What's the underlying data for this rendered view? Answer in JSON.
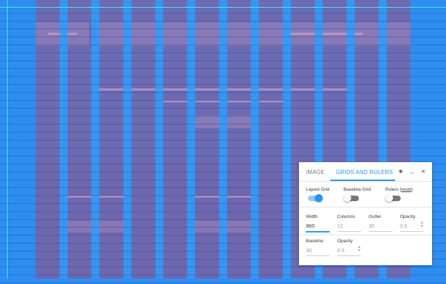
{
  "panel": {
    "tabs": [
      {
        "label": "IMAGE",
        "active": false
      },
      {
        "label": "GRIDS AND RULERS",
        "active": true
      }
    ],
    "icons": [
      "eye-off-icon",
      "minimize-icon",
      "close-icon"
    ],
    "minimize_glyph": "_",
    "close_glyph": "✕",
    "eye_glyph": "◉",
    "toggles": {
      "layout_grid": {
        "label": "Layout Grid",
        "on": true
      },
      "baseline_grid": {
        "label": "Baseline Grid",
        "on": false
      },
      "rulers": {
        "label": "Rulers",
        "reset": "reset",
        "on": false
      }
    },
    "layout": {
      "width": {
        "label": "Width",
        "value": "960"
      },
      "columns": {
        "label": "Columns",
        "value": "12"
      },
      "gutter": {
        "label": "Gutter",
        "value": "30"
      },
      "opacity": {
        "label": "Opacity",
        "value": "0.5"
      }
    },
    "baseline": {
      "baseline": {
        "label": "Baseline",
        "value": "30"
      },
      "opacity": {
        "label": "Opacity",
        "value": "0.5"
      }
    }
  },
  "colors": {
    "accent": "#2196f3",
    "grid_column": "#28a0ff",
    "ruler": "#3ee8ff",
    "page_bg": "#2d8ef0"
  }
}
